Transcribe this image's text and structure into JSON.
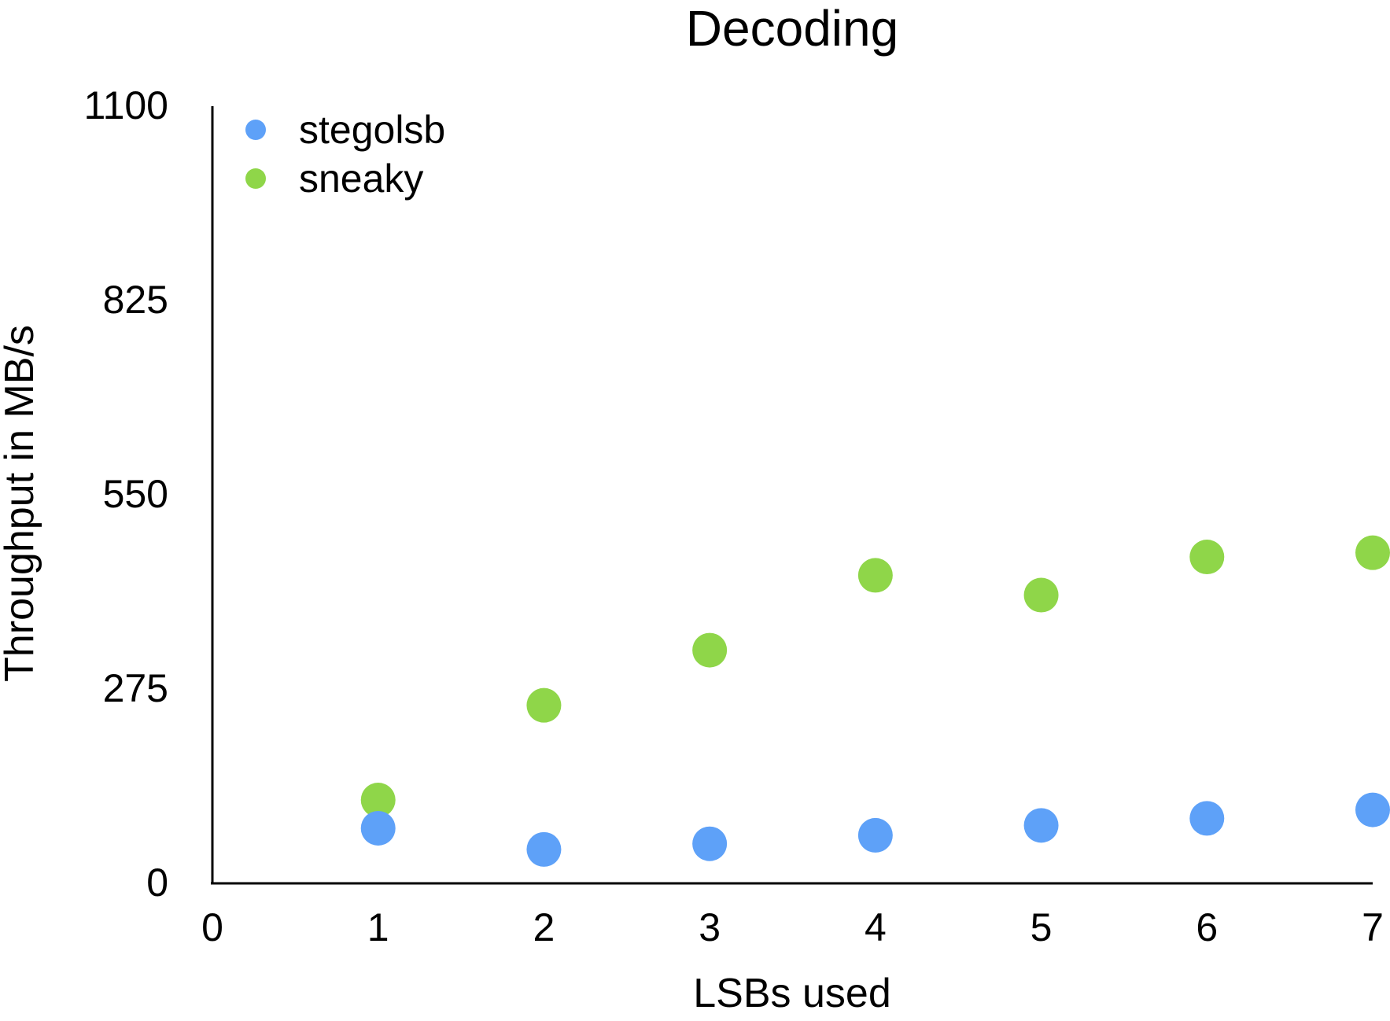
{
  "chart_data": {
    "type": "scatter",
    "title": "Decoding",
    "xlabel": "LSBs used",
    "ylabel": "Throughput in MB/s",
    "xlim": [
      0,
      7
    ],
    "ylim": [
      0,
      1100
    ],
    "xticks": [
      "0",
      "1",
      "2",
      "3",
      "4",
      "5",
      "6",
      "7"
    ],
    "yticks": [
      "0",
      "275",
      "550",
      "825",
      "1100"
    ],
    "grid": false,
    "legend_position": "top-left",
    "series": [
      {
        "name": "stegolsb",
        "color": "#5EA1F8",
        "x": [
          1,
          2,
          3,
          4,
          5,
          6,
          7
        ],
        "y": [
          78,
          48,
          56,
          68,
          82,
          92,
          104
        ]
      },
      {
        "name": "sneaky",
        "color": "#8FD649",
        "x": [
          1,
          2,
          3,
          4,
          5,
          6,
          7
        ],
        "y": [
          118,
          252,
          330,
          436,
          408,
          462,
          468
        ]
      }
    ]
  }
}
